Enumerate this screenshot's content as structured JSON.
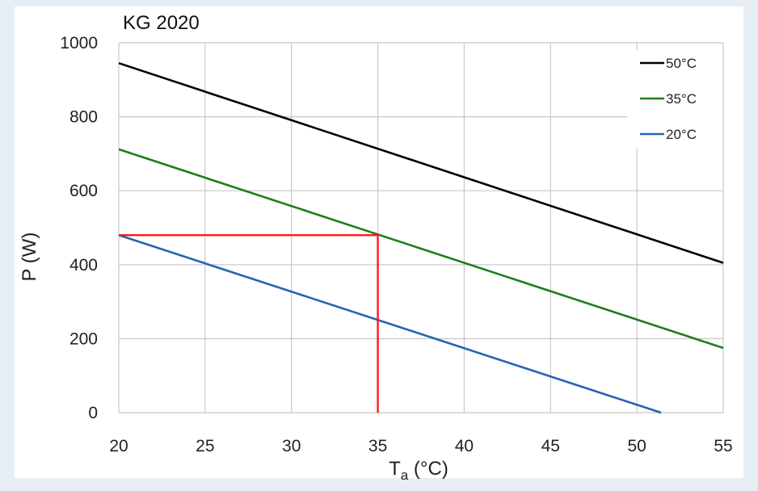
{
  "chart_data": {
    "type": "line",
    "title": "KG 2020",
    "xlabel": {
      "main": "T",
      "sub": "a",
      "unit": " (°C)"
    },
    "ylabel": "P (W)",
    "xlim": [
      20,
      55
    ],
    "ylim": [
      0,
      1000
    ],
    "xticks": [
      "20",
      "25",
      "30",
      "35",
      "40",
      "45",
      "50",
      "55"
    ],
    "yticks": [
      "0",
      "200",
      "400",
      "600",
      "800",
      "1000"
    ],
    "grid": true,
    "legend_position": "top-right",
    "series": [
      {
        "name": "50°C",
        "color": "#000000",
        "x": [
          20,
          55
        ],
        "y": [
          945,
          405
        ]
      },
      {
        "name": "35°C",
        "color": "#1e7d1e",
        "x": [
          20,
          55
        ],
        "y": [
          712,
          175
        ]
      },
      {
        "name": "20°C",
        "color": "#2a62b5",
        "x": [
          20,
          51.4
        ],
        "y": [
          480,
          0
        ]
      }
    ],
    "annotation": {
      "color": "#ff1a1a",
      "x": 35,
      "y": 480,
      "from_x": 20,
      "from_y": 0
    }
  }
}
